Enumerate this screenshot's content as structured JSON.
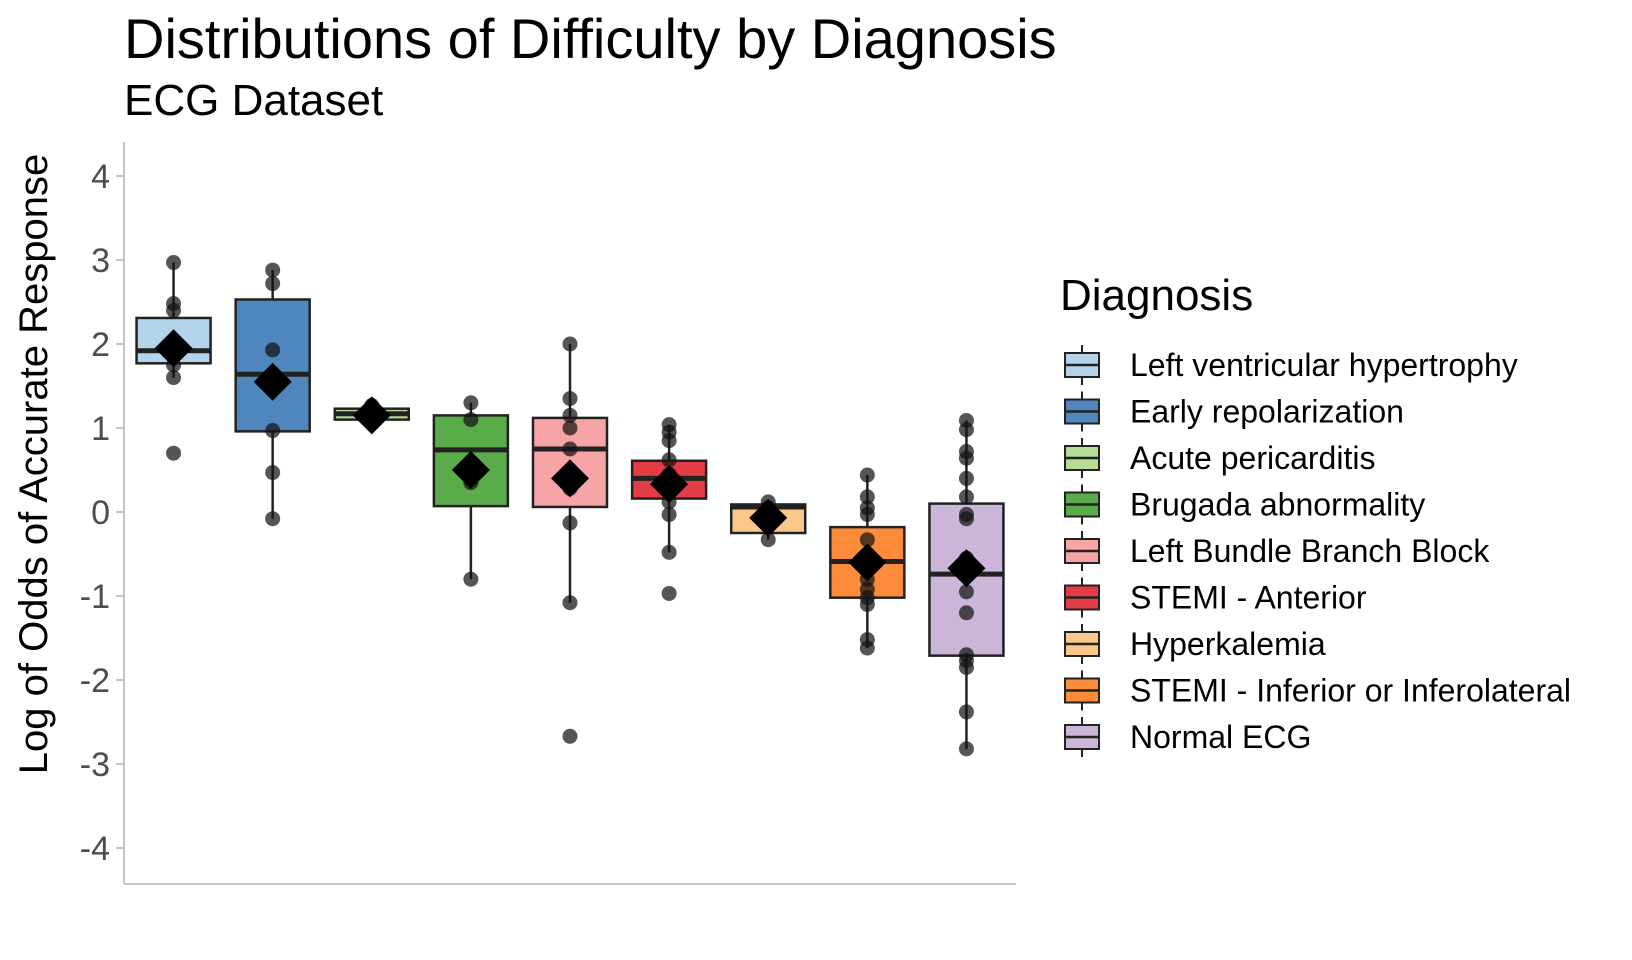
{
  "chart_data": {
    "type": "box",
    "title": "Distributions of Difficulty by Diagnosis",
    "subtitle": "ECG Dataset",
    "ylabel": "Log of Odds of Accurate Response",
    "xlabel": "",
    "ylim": [
      -4.4,
      4.4
    ],
    "yticks": [
      4,
      3,
      2,
      1,
      0,
      -1,
      -2,
      -3,
      -4
    ],
    "ytick_labels": [
      "4",
      "3",
      "2",
      "1",
      "0",
      "-1",
      "-2",
      "-3",
      "-4"
    ],
    "grid": false,
    "legend": {
      "title": "Diagnosis",
      "placement": "right"
    },
    "series": [
      {
        "name": "Left ventricular hypertrophy",
        "color": "#b3d3ea",
        "q1": 1.77,
        "median": 1.92,
        "q3": 2.31,
        "whisker_low": 1.6,
        "whisker_high": 2.97,
        "mean": 1.95,
        "points": [
          2.97,
          2.48,
          2.4,
          1.9,
          1.75,
          1.6,
          0.7
        ]
      },
      {
        "name": "Early repolarization",
        "color": "#4f86bd",
        "q1": 0.96,
        "median": 1.64,
        "q3": 2.53,
        "whisker_low": -0.08,
        "whisker_high": 2.88,
        "mean": 1.55,
        "points": [
          2.88,
          2.72,
          1.93,
          1.6,
          1.55,
          0.97,
          0.47,
          -0.08
        ]
      },
      {
        "name": "Acute pericarditis",
        "color": "#b6dd98",
        "q1": 1.1,
        "median": 1.17,
        "q3": 1.23,
        "whisker_low": 1.1,
        "whisker_high": 1.27,
        "mean": 1.15,
        "points": [
          1.27,
          1.2,
          1.13
        ]
      },
      {
        "name": "Brugada abnormality",
        "color": "#5aab4a",
        "q1": 0.07,
        "median": 0.74,
        "q3": 1.15,
        "whisker_low": -0.8,
        "whisker_high": 1.3,
        "mean": 0.5,
        "points": [
          1.3,
          1.1,
          0.45,
          0.35,
          -0.8
        ]
      },
      {
        "name": "Left Bundle Branch Block",
        "color": "#f7a4a6",
        "q1": 0.06,
        "median": 0.75,
        "q3": 1.12,
        "whisker_low": -1.08,
        "whisker_high": 2.0,
        "mean": 0.4,
        "points": [
          2.0,
          1.35,
          1.15,
          1.0,
          0.75,
          0.35,
          0.28,
          -0.13,
          -1.08,
          -2.67
        ]
      },
      {
        "name": "STEMI - Anterior",
        "color": "#e33c45",
        "q1": 0.16,
        "median": 0.4,
        "q3": 0.61,
        "whisker_low": -0.48,
        "whisker_high": 1.04,
        "mean": 0.33,
        "points": [
          1.04,
          0.95,
          0.85,
          0.62,
          0.45,
          0.3,
          0.12,
          -0.03,
          -0.48,
          -0.97
        ]
      },
      {
        "name": "Hyperkalemia",
        "color": "#fcc889",
        "q1": -0.25,
        "median": 0.06,
        "q3": 0.09,
        "whisker_low": -0.33,
        "whisker_high": 0.12,
        "mean": -0.07,
        "points": [
          0.12,
          0.05,
          -0.15,
          -0.33
        ]
      },
      {
        "name": "STEMI - Inferior or Inferolateral",
        "color": "#fc8b3b",
        "q1": -1.02,
        "median": -0.59,
        "q3": -0.18,
        "whisker_low": -1.62,
        "whisker_high": 0.44,
        "mean": -0.6,
        "points": [
          0.44,
          0.18,
          0.05,
          -0.03,
          -0.33,
          -0.8,
          -0.92,
          -1.02,
          -1.1,
          -1.52,
          -1.62
        ]
      },
      {
        "name": "Normal ECG",
        "color": "#cbb6d9",
        "q1": -1.71,
        "median": -0.74,
        "q3": 0.1,
        "whisker_low": -2.82,
        "whisker_high": 1.09,
        "mean": -0.67,
        "points": [
          1.09,
          0.98,
          0.72,
          0.64,
          0.4,
          0.18,
          -0.03,
          -0.08,
          -0.55,
          -0.95,
          -1.2,
          -1.7,
          -1.77,
          -1.85,
          -2.38,
          -2.82
        ]
      }
    ]
  }
}
